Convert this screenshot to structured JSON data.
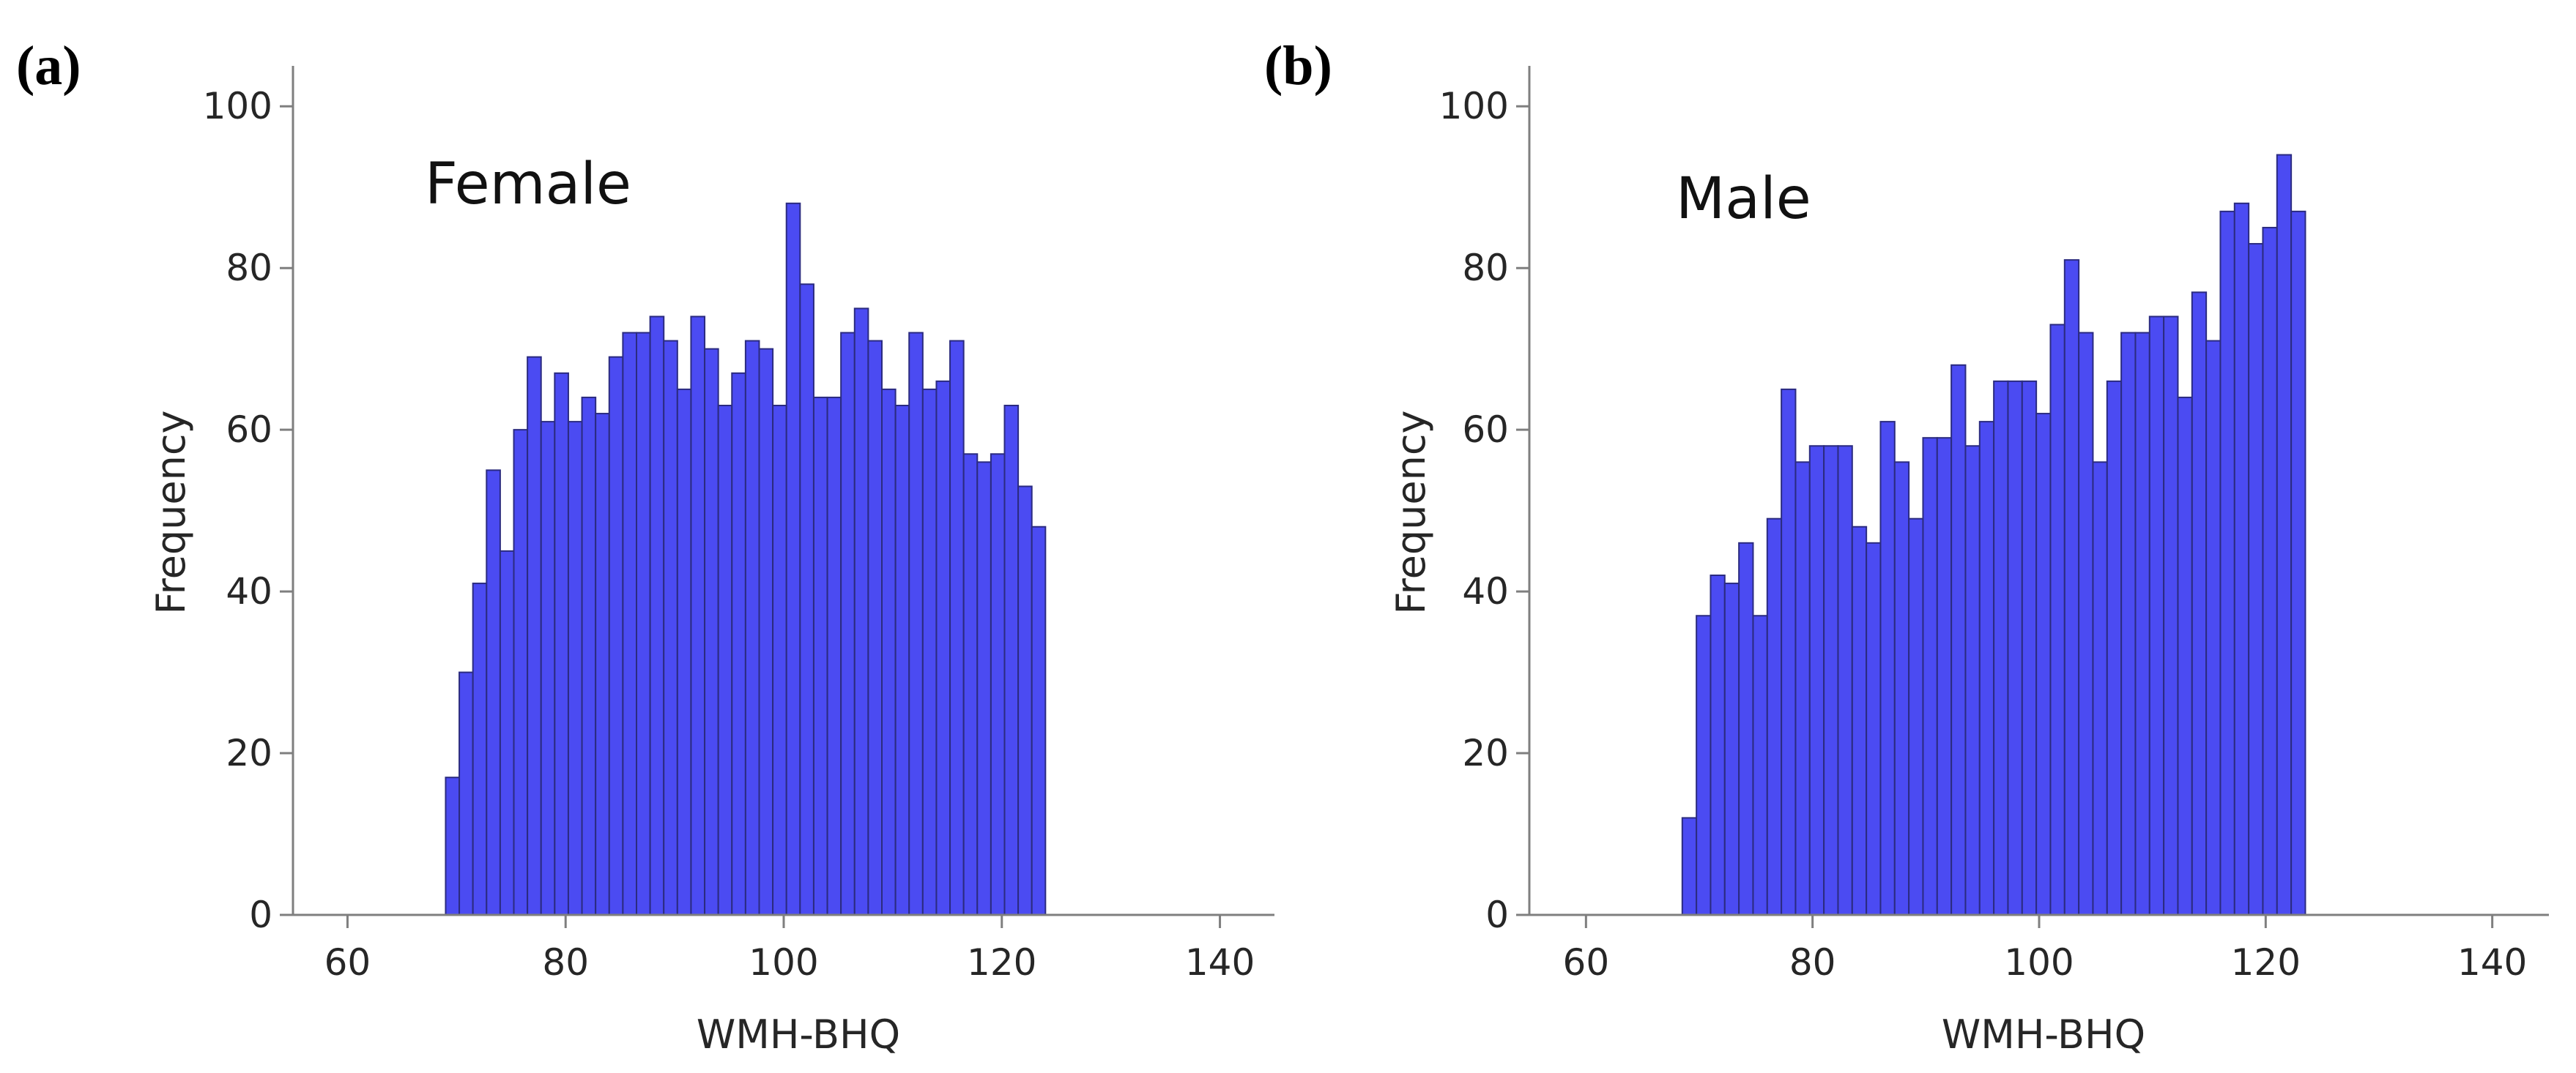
{
  "colors": {
    "bar_fill": "#4b4bf2",
    "bar_edge": "#2b2b80",
    "axis": "#7f7f7f",
    "text": "#262626"
  },
  "chart_data": [
    {
      "type": "bar",
      "panel_label": "(a)",
      "group_label": "Female",
      "xlabel": "WMH-BHQ",
      "ylabel": "Frequency",
      "xlim": [
        55,
        145
      ],
      "ylim": [
        0,
        105
      ],
      "xticks": [
        60,
        80,
        100,
        120,
        140
      ],
      "yticks": [
        0,
        20,
        40,
        60,
        80,
        100
      ],
      "grid": false,
      "bin_start": 69,
      "bin_width": 1.25,
      "values": [
        17,
        30,
        41,
        55,
        45,
        60,
        69,
        61,
        67,
        61,
        64,
        62,
        69,
        72,
        72,
        74,
        71,
        65,
        74,
        70,
        63,
        67,
        71,
        70,
        63,
        88,
        78,
        64,
        64,
        72,
        75,
        71,
        65,
        63,
        72,
        65,
        66,
        71,
        57,
        56,
        57,
        63,
        53,
        48
      ]
    },
    {
      "type": "bar",
      "panel_label": "(b)",
      "group_label": "Male",
      "xlabel": "WMH-BHQ",
      "ylabel": "Frequency",
      "xlim": [
        55,
        145
      ],
      "ylim": [
        0,
        105
      ],
      "xticks": [
        60,
        80,
        100,
        120,
        140
      ],
      "yticks": [
        0,
        20,
        40,
        60,
        80,
        100
      ],
      "grid": false,
      "bin_start": 68.5,
      "bin_width": 1.25,
      "values": [
        12,
        37,
        42,
        41,
        46,
        37,
        49,
        65,
        56,
        58,
        58,
        58,
        48,
        46,
        61,
        56,
        49,
        59,
        59,
        68,
        58,
        61,
        66,
        66,
        66,
        62,
        73,
        81,
        72,
        56,
        66,
        72,
        72,
        74,
        74,
        64,
        77,
        71,
        87,
        88,
        83,
        85,
        94,
        87
      ]
    }
  ]
}
